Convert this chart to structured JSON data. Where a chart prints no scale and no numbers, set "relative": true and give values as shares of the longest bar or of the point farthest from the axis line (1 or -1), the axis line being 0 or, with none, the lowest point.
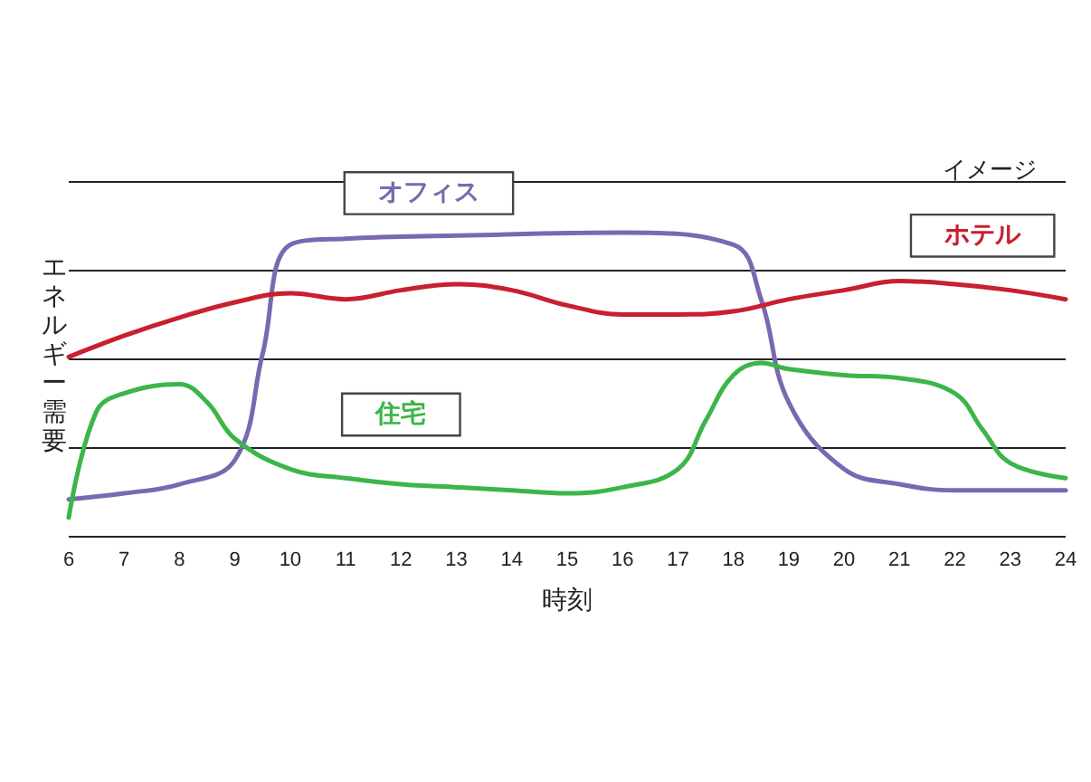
{
  "chart_data": {
    "type": "line",
    "relative": true,
    "xlabel": "時刻",
    "ylabel": "エネルギー需要",
    "xlim": [
      6,
      24
    ],
    "xticks": [
      6,
      7,
      8,
      9,
      10,
      11,
      12,
      13,
      14,
      15,
      16,
      17,
      18,
      19,
      20,
      21,
      22,
      23,
      24
    ],
    "grid": "y",
    "legend": false,
    "marker": "none",
    "line_style": "solid",
    "annotations": [
      "イメージ"
    ],
    "series": [
      {
        "name": "オフィス",
        "color": "#7b68b0",
        "x": [
          6,
          7,
          8,
          9,
          9.5,
          10,
          11,
          13,
          16,
          18,
          18.5,
          19,
          20,
          21,
          22,
          24
        ],
        "values": [
          0.12,
          0.14,
          0.17,
          0.25,
          0.6,
          0.96,
          0.98,
          0.99,
          1,
          0.96,
          0.78,
          0.44,
          0.22,
          0.17,
          0.15,
          0.15
        ]
      },
      {
        "name": "ホテル",
        "color": "#c8202f",
        "x": [
          6,
          7,
          8,
          9,
          10,
          11,
          12,
          13,
          14,
          15,
          16,
          17,
          18,
          19,
          20,
          21,
          22,
          23,
          24
        ],
        "values": [
          0.59,
          0.66,
          0.72,
          0.77,
          0.8,
          0.78,
          0.81,
          0.83,
          0.81,
          0.76,
          0.73,
          0.73,
          0.74,
          0.78,
          0.81,
          0.84,
          0.83,
          0.81,
          0.78
        ]
      },
      {
        "name": "住宅",
        "color": "#3cb54a",
        "x": [
          6,
          6.5,
          7,
          8,
          8.5,
          9,
          10,
          11,
          12,
          13,
          14,
          15,
          16,
          17,
          17.5,
          18,
          18.5,
          19,
          20,
          21,
          22,
          22.5,
          23,
          24
        ],
        "values": [
          0.06,
          0.41,
          0.47,
          0.5,
          0.44,
          0.32,
          0.22,
          0.19,
          0.17,
          0.16,
          0.15,
          0.14,
          0.16,
          0.22,
          0.38,
          0.53,
          0.57,
          0.55,
          0.53,
          0.52,
          0.47,
          0.35,
          0.24,
          0.19
        ]
      }
    ]
  }
}
